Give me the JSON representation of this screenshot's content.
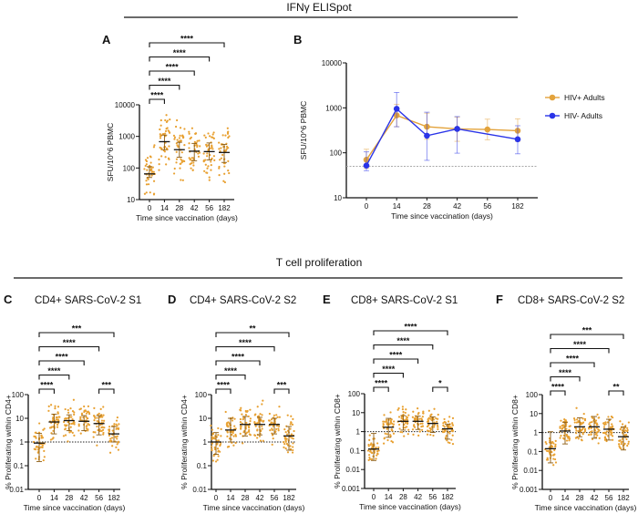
{
  "sections": {
    "top_title": "IFNγ ELISpot",
    "bottom_title": "T cell proliferation"
  },
  "colors": {
    "hiv_pos": "#E3A33C",
    "hiv_neg": "#2A34E8",
    "dots": "#E8A030",
    "axis": "#111111"
  },
  "chart_data": [
    {
      "id": "A",
      "letter": "A",
      "type": "scatter",
      "title": "",
      "xlabel": "Time since vaccination (days)",
      "ylabel": "SFU/10^6 PBMC",
      "categories": [
        "0",
        "14",
        "28",
        "42",
        "56",
        "182"
      ],
      "yscale": "log",
      "ylim": [
        10,
        10000
      ],
      "yticks": [
        "10",
        "100",
        "1000",
        "10000"
      ],
      "medians": [
        65,
        680,
        380,
        340,
        330,
        310
      ],
      "iqr": [
        [
          50,
          110
        ],
        [
          380,
          1100
        ],
        [
          220,
          650
        ],
        [
          170,
          600
        ],
        [
          180,
          620
        ],
        [
          150,
          560
        ]
      ],
      "brackets": [
        {
          "from": "0",
          "to": "14",
          "label": "****",
          "level": 0
        },
        {
          "from": "0",
          "to": "28",
          "label": "****",
          "level": 1
        },
        {
          "from": "0",
          "to": "42",
          "label": "****",
          "level": 2
        },
        {
          "from": "0",
          "to": "56",
          "label": "****",
          "level": 3
        },
        {
          "from": "0",
          "to": "182",
          "label": "****",
          "level": 4
        }
      ]
    },
    {
      "id": "B",
      "letter": "B",
      "type": "line",
      "title": "",
      "xlabel": "Time since vaccination (days)",
      "ylabel": "SFU/10^6 PBMC",
      "categories": [
        "0",
        "14",
        "28",
        "42",
        "56",
        "182"
      ],
      "yscale": "log",
      "ylim": [
        10,
        10000
      ],
      "yticks": [
        "10",
        "100",
        "1000",
        "10000"
      ],
      "reference_line": 50,
      "legend_position": "right",
      "series": [
        {
          "name": "HIV+ Adults",
          "color": "#E3A33C",
          "values": [
            70,
            680,
            380,
            340,
            330,
            310
          ],
          "err": [
            [
              45,
              120
            ],
            [
              380,
              1200
            ],
            [
              200,
              760
            ],
            [
              180,
              620
            ],
            [
              195,
              560
            ],
            [
              180,
              570
            ]
          ]
        },
        {
          "name": "HIV- Adults",
          "color": "#2A34E8",
          "values": [
            52,
            950,
            240,
            340,
            null,
            200
          ],
          "err": [
            [
              40,
              105
            ],
            [
              380,
              2200
            ],
            [
              68,
              800
            ],
            [
              98,
              640
            ],
            null,
            [
              95,
              400
            ]
          ]
        }
      ]
    },
    {
      "id": "C",
      "letter": "C",
      "type": "scatter",
      "title": "CD4+ SARS-CoV-2 S1",
      "xlabel": "Time since vaccination (days)",
      "ylabel": "% Proliferating within CD4+",
      "categories": [
        "0",
        "14",
        "28",
        "42",
        "56",
        "182"
      ],
      "yscale": "log",
      "ylim": [
        0.01,
        100
      ],
      "yticks": [
        "0.01",
        "0.1",
        "1",
        "10",
        "100"
      ],
      "reference_line": 1,
      "medians": [
        0.9,
        7,
        8,
        7.5,
        6,
        2.2
      ],
      "iqr": [
        [
          0.15,
          2.3
        ],
        [
          2.2,
          15
        ],
        [
          3,
          14
        ],
        [
          3,
          13
        ],
        [
          2,
          13
        ],
        [
          1,
          4.5
        ]
      ],
      "brackets": [
        {
          "from": "0",
          "to": "14",
          "label": "****",
          "level": 0
        },
        {
          "from": "0",
          "to": "28",
          "label": "****",
          "level": 1
        },
        {
          "from": "0",
          "to": "42",
          "label": "****",
          "level": 2
        },
        {
          "from": "0",
          "to": "56",
          "label": "****",
          "level": 3
        },
        {
          "from": "0",
          "to": "182",
          "label": "***",
          "level": 4
        },
        {
          "from": "56",
          "to": "182",
          "label": "***",
          "level": 0
        }
      ]
    },
    {
      "id": "D",
      "letter": "D",
      "type": "scatter",
      "title": "CD4+ SARS-CoV-2 S2",
      "xlabel": "Time since vaccination (days)",
      "ylabel": "% Proliferating within CD4+",
      "categories": [
        "0",
        "14",
        "28",
        "42",
        "56",
        "182"
      ],
      "yscale": "log",
      "ylim": [
        0.01,
        100
      ],
      "yticks": [
        "0.01",
        "0.1",
        "1",
        "10",
        "100"
      ],
      "reference_line": 1,
      "medians": [
        1,
        3.2,
        5.5,
        5.5,
        5.5,
        1.8
      ],
      "iqr": [
        [
          0.3,
          2.5
        ],
        [
          1,
          10
        ],
        [
          1.8,
          12
        ],
        [
          2,
          11
        ],
        [
          2.2,
          10
        ],
        [
          0.45,
          4.5
        ]
      ],
      "brackets": [
        {
          "from": "0",
          "to": "14",
          "label": "****",
          "level": 0
        },
        {
          "from": "0",
          "to": "28",
          "label": "****",
          "level": 1
        },
        {
          "from": "0",
          "to": "42",
          "label": "****",
          "level": 2
        },
        {
          "from": "0",
          "to": "56",
          "label": "****",
          "level": 3
        },
        {
          "from": "0",
          "to": "182",
          "label": "**",
          "level": 4
        },
        {
          "from": "56",
          "to": "182",
          "label": "***",
          "level": 0
        }
      ]
    },
    {
      "id": "E",
      "letter": "E",
      "type": "scatter",
      "title": "CD8+ SARS-CoV-2 S1",
      "xlabel": "Time since vaccination (days)",
      "ylabel": "% Proliferating within CD8+",
      "categories": [
        "0",
        "14",
        "28",
        "42",
        "56",
        "182"
      ],
      "yscale": "log",
      "ylim": [
        0.001,
        100
      ],
      "yticks": [
        "0.001",
        "0.01",
        "0.1",
        "1",
        "10",
        "100"
      ],
      "reference_line": 1,
      "medians": [
        0.12,
        1.7,
        3.5,
        3.5,
        2.7,
        1.4
      ],
      "iqr": [
        [
          0.03,
          0.8
        ],
        [
          0.5,
          5
        ],
        [
          1.2,
          7
        ],
        [
          1.3,
          6.5
        ],
        [
          0.9,
          6
        ],
        [
          0.4,
          2.5
        ]
      ],
      "brackets": [
        {
          "from": "0",
          "to": "14",
          "label": "****",
          "level": 0
        },
        {
          "from": "0",
          "to": "28",
          "label": "****",
          "level": 1
        },
        {
          "from": "0",
          "to": "42",
          "label": "****",
          "level": 2
        },
        {
          "from": "0",
          "to": "56",
          "label": "****",
          "level": 3
        },
        {
          "from": "0",
          "to": "182",
          "label": "****",
          "level": 4
        },
        {
          "from": "56",
          "to": "182",
          "label": "*",
          "level": 0
        }
      ]
    },
    {
      "id": "F",
      "letter": "F",
      "type": "scatter",
      "title": "CD8+ SARS-CoV-2 S2",
      "xlabel": "Time since vaccination (days)",
      "ylabel": "% Proliferating within CD8+",
      "categories": [
        "0",
        "14",
        "28",
        "42",
        "56",
        "182"
      ],
      "yscale": "log",
      "ylim": [
        0.001,
        100
      ],
      "yticks": [
        "0.001",
        "0.01",
        "0.1",
        "1",
        "10",
        "100"
      ],
      "reference_line": 1,
      "medians": [
        0.14,
        1.2,
        2,
        2,
        1.5,
        0.6
      ],
      "iqr": [
        [
          0.025,
          1.1
        ],
        [
          0.25,
          3.5
        ],
        [
          0.6,
          6
        ],
        [
          0.5,
          7
        ],
        [
          0.4,
          5
        ],
        [
          0.12,
          2
        ]
      ],
      "brackets": [
        {
          "from": "0",
          "to": "14",
          "label": "****",
          "level": 0
        },
        {
          "from": "0",
          "to": "28",
          "label": "****",
          "level": 1
        },
        {
          "from": "0",
          "to": "42",
          "label": "****",
          "level": 2
        },
        {
          "from": "0",
          "to": "56",
          "label": "****",
          "level": 3
        },
        {
          "from": "0",
          "to": "182",
          "label": "***",
          "level": 4
        },
        {
          "from": "56",
          "to": "182",
          "label": "**",
          "level": 0
        }
      ]
    }
  ]
}
